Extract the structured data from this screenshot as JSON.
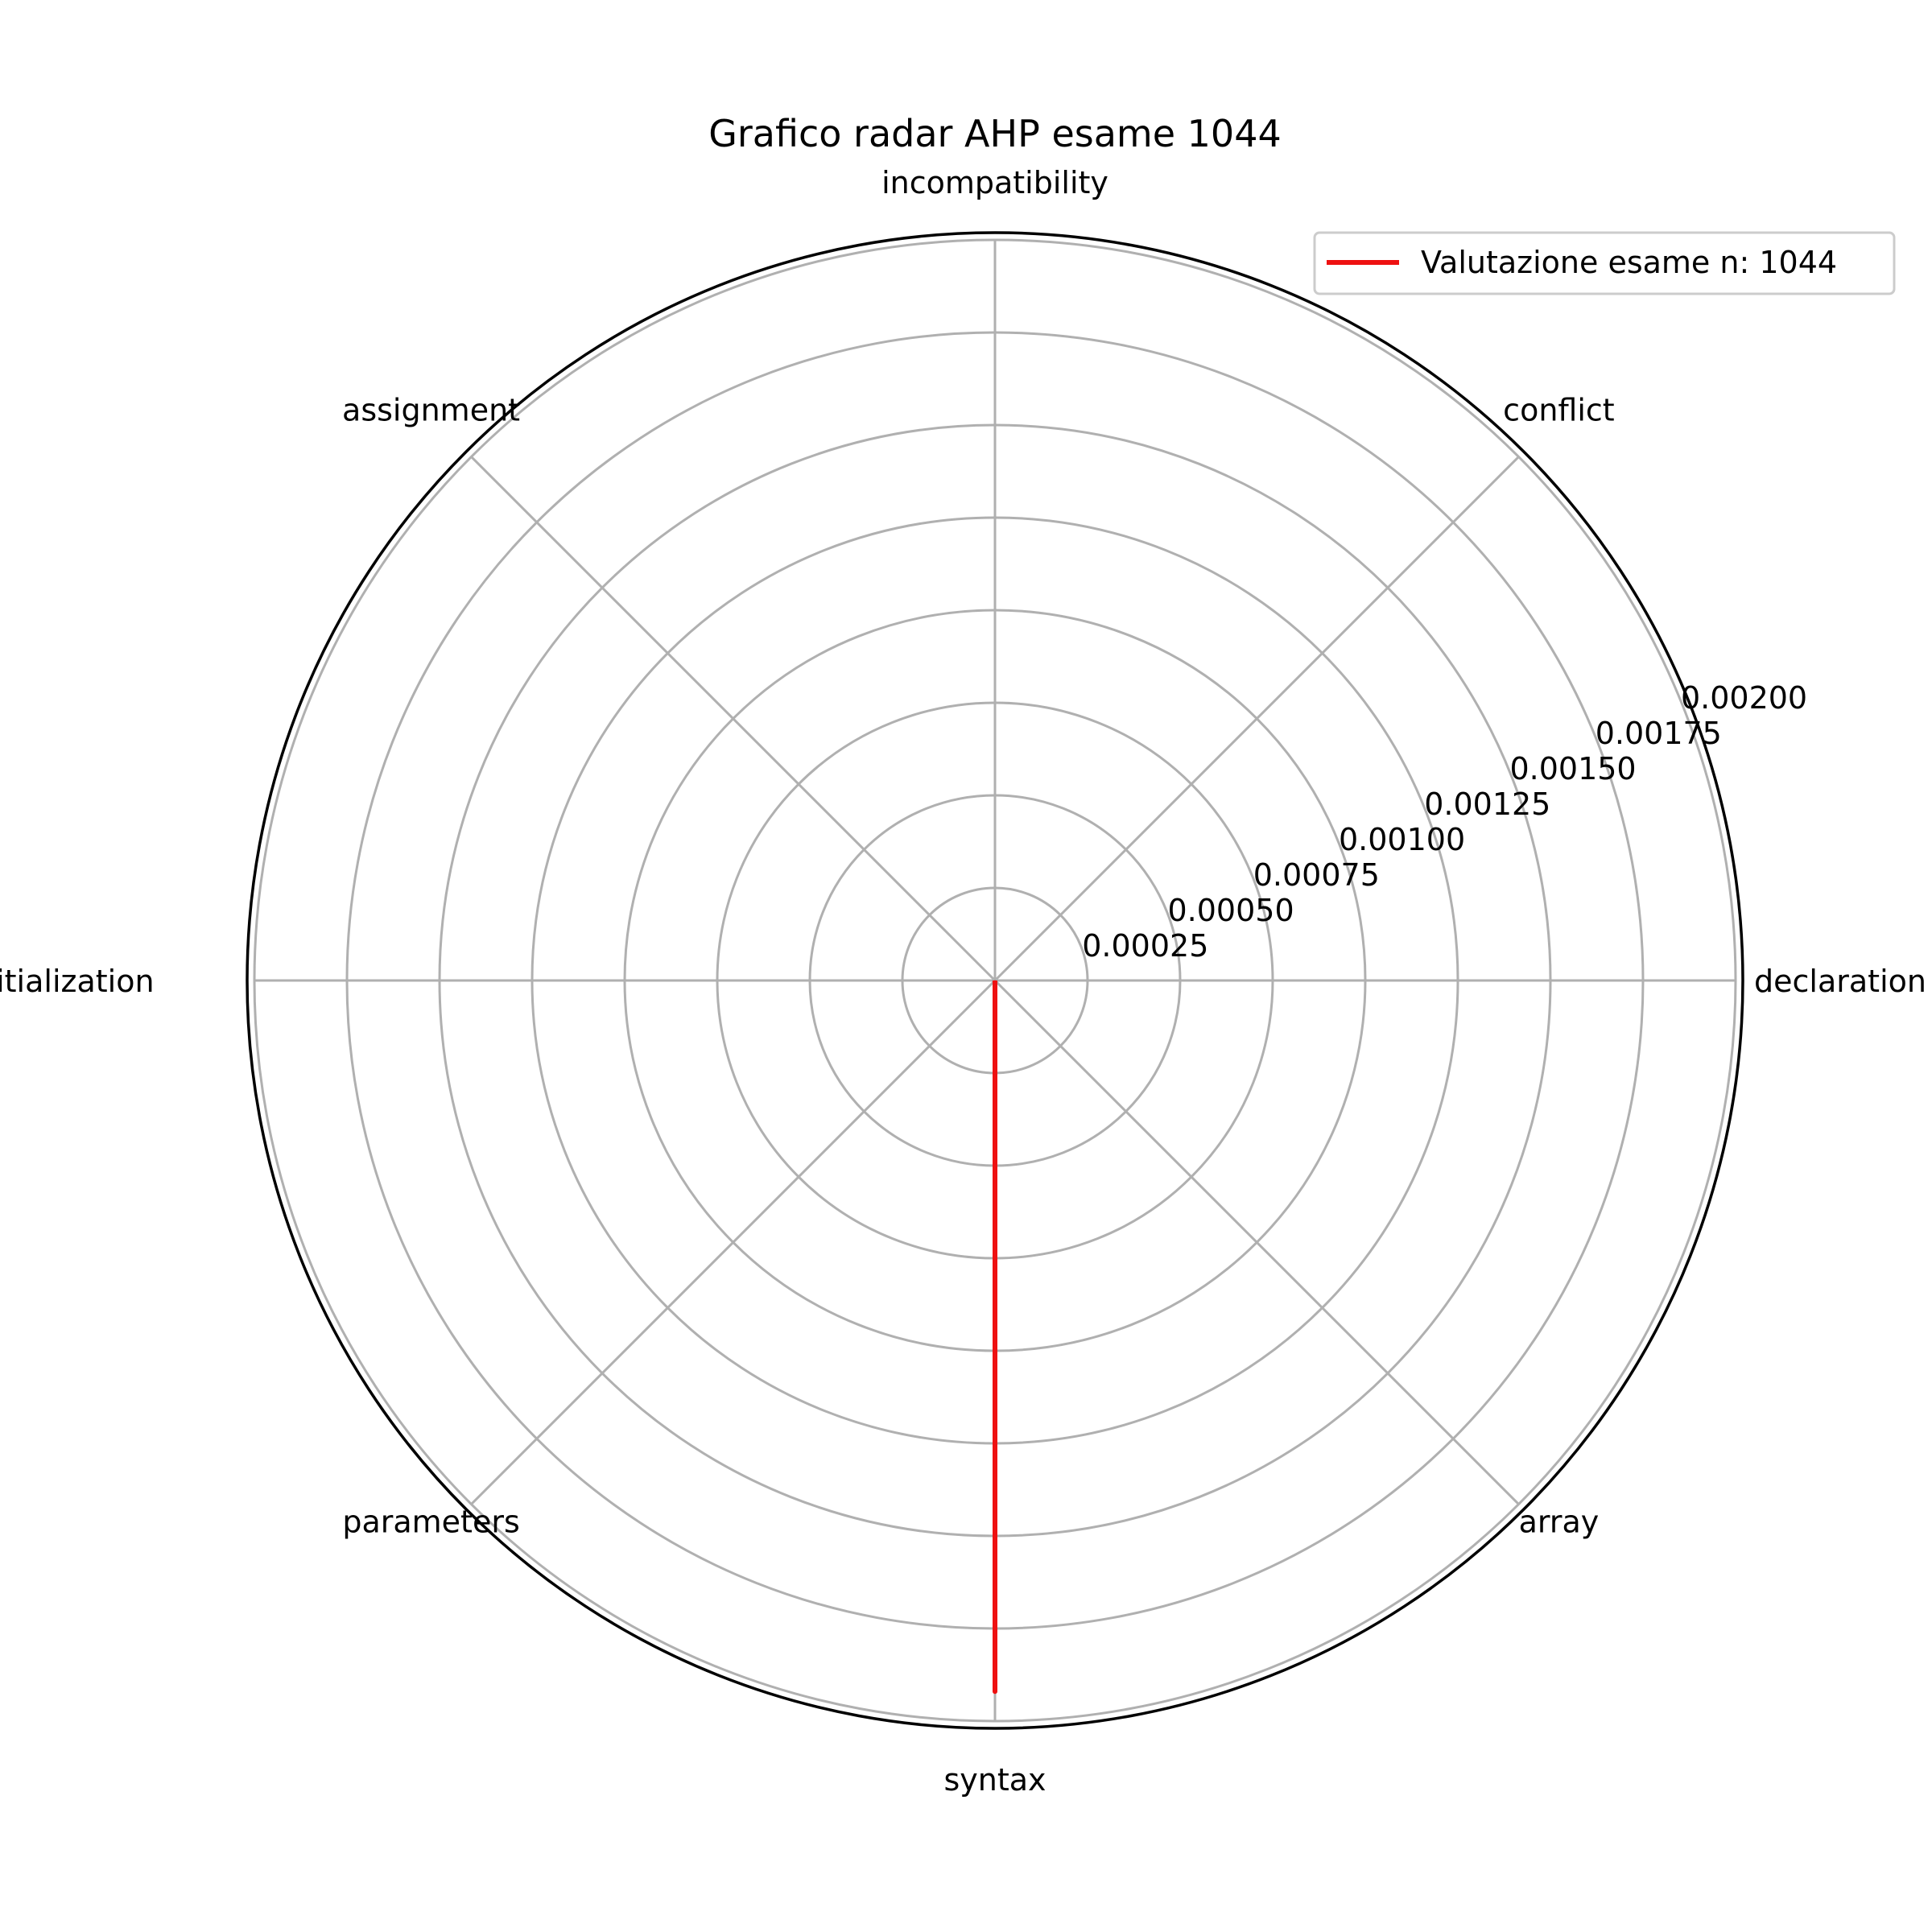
{
  "chart_data": {
    "type": "radar",
    "title": "Grafico radar AHP esame 1044",
    "categories": [
      "incompatibility",
      "conflict",
      "declaration",
      "array",
      "syntax",
      "parameters",
      "initialization",
      "assignment"
    ],
    "series": [
      {
        "name": "Valutazione esame n: 1044",
        "values": [
          0,
          0,
          0,
          0,
          0.00192,
          0,
          0,
          0
        ]
      }
    ],
    "rlim": [
      0,
      0.002
    ],
    "rticks": [
      0.00025,
      0.0005,
      0.00075,
      0.001,
      0.00125,
      0.0015,
      0.00175,
      0.002
    ],
    "rtick_labels": [
      "0.00025",
      "0.00050",
      "0.00075",
      "0.00100",
      "0.00125",
      "0.00150",
      "0.00175",
      "0.00200"
    ],
    "grid": true,
    "legend_position": "top-right",
    "colors": {
      "series": "#ee1111",
      "grid": "#b0b0b0",
      "outer_ring": "#000000"
    }
  }
}
